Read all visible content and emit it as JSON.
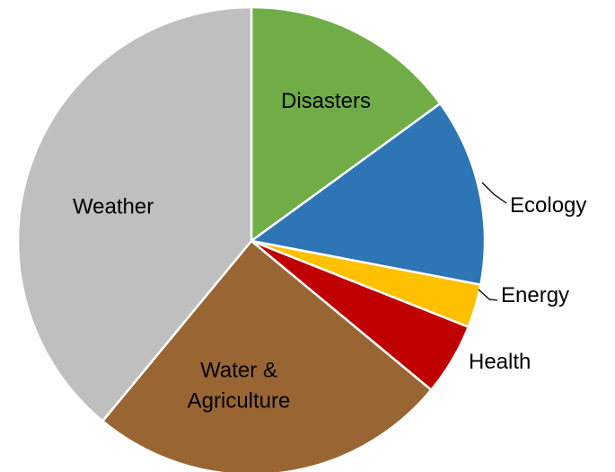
{
  "chart_data": {
    "type": "pie",
    "slices": [
      {
        "label": "Disasters",
        "value": 15,
        "color": "#70AD47"
      },
      {
        "label": "Ecology",
        "value": 13,
        "color": "#2E75B6"
      },
      {
        "label": "Energy",
        "value": 3,
        "color": "#FFC000"
      },
      {
        "label": "Health",
        "value": 5,
        "color": "#C00000"
      },
      {
        "label": "Water & Agriculture",
        "label_lines": [
          "Water &",
          "Agriculture"
        ],
        "value": 25,
        "color": "#996633"
      },
      {
        "label": "Weather",
        "value": 39,
        "color": "#BFBFBF"
      }
    ],
    "start": "12 o'clock",
    "direction": "clockwise",
    "legend": "none",
    "labels": "category names on or beside slices"
  }
}
